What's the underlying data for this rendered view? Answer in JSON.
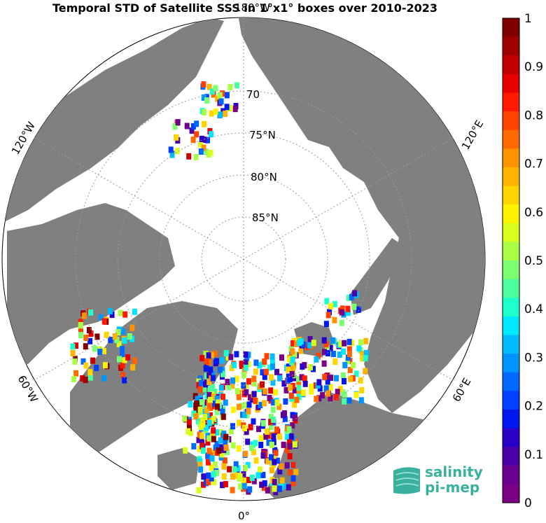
{
  "title": "Temporal STD of Satellite SSS in 1°x1° boxes over 2010-2023",
  "meridian_labels": {
    "top": "180°W",
    "left_upper": "120°W",
    "right_upper": "120°E",
    "left_lower": "60°W",
    "right_lower": "60°E",
    "bottom": "0°"
  },
  "parallel_labels": [
    "70",
    "75°N",
    "80°N",
    "85°N"
  ],
  "colorbar": {
    "ticks": [
      "1",
      "0.9",
      "0.8",
      "0.7",
      "0.6",
      "0.5",
      "0.4",
      "0.3",
      "0.2",
      "0.1",
      "0"
    ],
    "colors": [
      "#7f0000",
      "#9f0000",
      "#c40000",
      "#e60000",
      "#ff1a00",
      "#ff4400",
      "#ff6a00",
      "#ff9200",
      "#ffb400",
      "#ffd400",
      "#fff200",
      "#d8ff1e",
      "#aaff46",
      "#7cff70",
      "#4cff9c",
      "#1effcc",
      "#00e8ff",
      "#00bcff",
      "#0094ff",
      "#0068ff",
      "#0040ff",
      "#0018f0",
      "#2800c8",
      "#4a00a8",
      "#6a0090",
      "#7a0084"
    ]
  },
  "colors": {
    "land": "#808080",
    "ocean": "#ffffff",
    "brand": "#3ab09e"
  },
  "logo": {
    "line1": "salinity",
    "line2": "pi-mep"
  }
}
